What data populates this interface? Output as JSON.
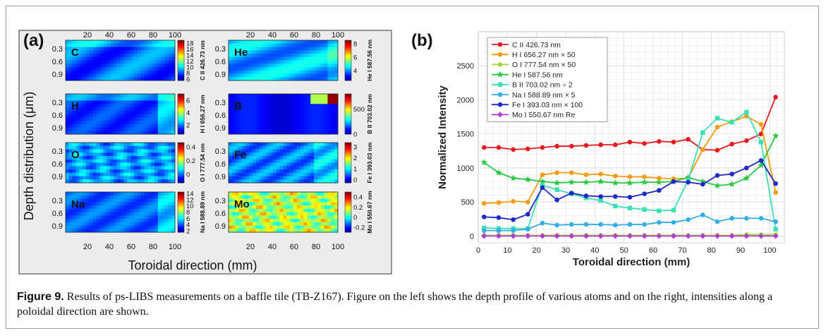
{
  "figure": {
    "caption_label": "Figure 9.",
    "caption_text": " Results of ps-LIBS measurements on a baffle tile (TB-Z167). Figure on the left shows the depth profile of various atoms and on the right, intensities along a poloidal direction are shown."
  },
  "chart_data": [
    {
      "type": "heatmap",
      "panel_label": "(a)",
      "xlabel": "Toroidal direction (mm)",
      "ylabel": "Depth distribution (μm)",
      "x_ticks": [
        20,
        40,
        60,
        80,
        100
      ],
      "y_ticks": [
        0.3,
        0.6,
        0.9
      ],
      "colormap": "jet",
      "panels": [
        {
          "element": "C",
          "colorbar_label": "C II 426.73 nm",
          "colorbar_ticks": [
            6,
            8,
            10,
            12,
            14,
            16,
            18
          ],
          "clim": [
            5.5,
            19
          ]
        },
        {
          "element": "H",
          "colorbar_label": "H I 656.27 nm",
          "colorbar_ticks": [
            2,
            4,
            6
          ],
          "clim": [
            0.5,
            7
          ]
        },
        {
          "element": "O",
          "colorbar_label": "O I 777.54 nm",
          "colorbar_ticks": [
            0,
            0.2,
            0.4
          ],
          "clim": [
            -0.12,
            0.46
          ]
        },
        {
          "element": "Na",
          "colorbar_label": "Na I 588.89 nm",
          "colorbar_ticks": [
            2,
            4,
            6,
            8,
            10,
            12,
            14
          ],
          "clim": [
            1.5,
            14.5
          ]
        },
        {
          "element": "He",
          "colorbar_label": "He I 587.56 nm",
          "colorbar_ticks": [
            4,
            6,
            8
          ],
          "clim": [
            2.5,
            8.5
          ]
        },
        {
          "element": "B",
          "colorbar_label": "B II 703.02 nm",
          "colorbar_ticks": [
            0,
            500
          ],
          "clim": [
            0,
            800
          ]
        },
        {
          "element": "Fe",
          "colorbar_label": "Fe I 393.03 nm",
          "colorbar_ticks": [
            0,
            1,
            2,
            3
          ],
          "clim": [
            -0.3,
            3.4
          ]
        },
        {
          "element": "Mo",
          "colorbar_label": "Mo I 550.67 nm",
          "colorbar_ticks": [
            -0.2,
            0,
            0.2,
            0.4
          ],
          "clim": [
            -0.3,
            0.5
          ]
        }
      ]
    },
    {
      "type": "line",
      "panel_label": "(b)",
      "xlabel": "Toroidal direction (mm)",
      "ylabel": "Normalized Intensity",
      "xlim": [
        0,
        105
      ],
      "ylim": [
        -100,
        3000
      ],
      "x_ticks": [
        0,
        10,
        20,
        30,
        40,
        50,
        60,
        70,
        80,
        90,
        100
      ],
      "y_ticks": [
        0,
        500,
        1000,
        1500,
        2000,
        2500
      ],
      "grid": true,
      "legend": "top-left",
      "x": [
        2,
        7,
        12,
        17,
        22,
        27,
        32,
        37,
        42,
        47,
        52,
        57,
        62,
        67,
        72,
        77,
        82,
        87,
        92,
        97,
        102
      ],
      "series": [
        {
          "name": "C II 426.73 nm",
          "color": "#e8191e",
          "marker": "circle",
          "values": [
            1300,
            1300,
            1270,
            1280,
            1300,
            1320,
            1320,
            1330,
            1340,
            1340,
            1380,
            1360,
            1390,
            1380,
            1420,
            1270,
            1260,
            1350,
            1400,
            1500,
            2040
          ]
        },
        {
          "name": "H I 656.27 nm × 50",
          "color": "#f39c12",
          "marker": "circle",
          "values": [
            480,
            490,
            510,
            500,
            900,
            930,
            930,
            900,
            910,
            880,
            870,
            870,
            850,
            840,
            850,
            1270,
            1600,
            1680,
            1760,
            1640,
            640
          ]
        },
        {
          "name": "O I 777.54 nm × 50",
          "color": "#a4d63a",
          "marker": "circle",
          "values": [
            10,
            10,
            10,
            10,
            10,
            10,
            10,
            10,
            10,
            10,
            10,
            10,
            10,
            10,
            10,
            10,
            10,
            10,
            20,
            20,
            20
          ]
        },
        {
          "name": "He I 587.56 nm",
          "color": "#27c93f",
          "marker": "star",
          "values": [
            1080,
            930,
            850,
            830,
            800,
            780,
            790,
            790,
            800,
            780,
            780,
            790,
            790,
            800,
            860,
            800,
            740,
            760,
            850,
            1040,
            1470
          ]
        },
        {
          "name": "B II 703.02 nm ÷ 2",
          "color": "#3ddfb4",
          "marker": "square",
          "values": [
            120,
            110,
            110,
            110,
            750,
            680,
            620,
            560,
            520,
            440,
            410,
            390,
            370,
            380,
            820,
            1520,
            1730,
            1670,
            1820,
            1380,
            100
          ]
        },
        {
          "name": "Na I 588.89 nm × 5",
          "color": "#33aee8",
          "marker": "circle",
          "values": [
            80,
            80,
            80,
            100,
            190,
            160,
            170,
            170,
            170,
            160,
            170,
            170,
            200,
            200,
            240,
            310,
            210,
            260,
            260,
            260,
            210
          ]
        },
        {
          "name": "Fe I 393.03 nm × 100",
          "color": "#1f29c9",
          "marker": "circle",
          "values": [
            280,
            270,
            240,
            320,
            710,
            530,
            630,
            590,
            580,
            580,
            570,
            620,
            670,
            800,
            790,
            760,
            890,
            910,
            1000,
            1110,
            770
          ]
        },
        {
          "name": "Mo I 550.67 nm Re",
          "color": "#b13adb",
          "marker": "diamond",
          "values": [
            0,
            0,
            0,
            0,
            0,
            0,
            0,
            0,
            0,
            0,
            0,
            0,
            0,
            0,
            0,
            0,
            0,
            0,
            0,
            0,
            0
          ]
        }
      ]
    }
  ]
}
